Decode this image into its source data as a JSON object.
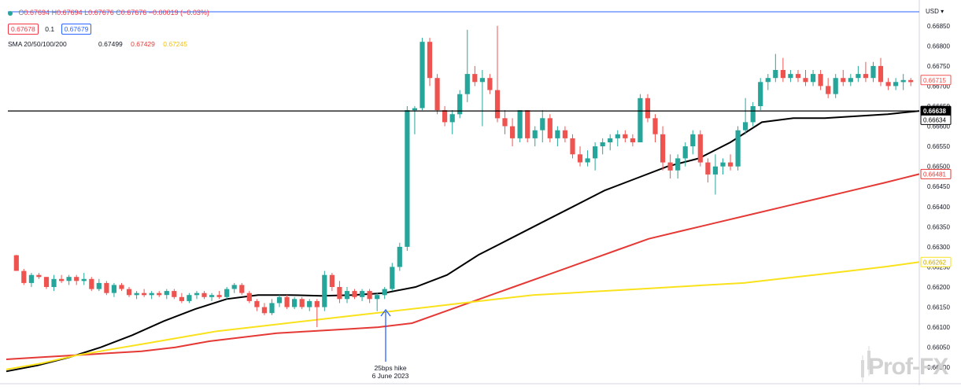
{
  "legend": {
    "open_label": "O",
    "open": "0.67694",
    "high_label": "H",
    "high": "0.67694",
    "low_label": "L",
    "low": "0.67676",
    "close_label": "C",
    "close": "0.67676",
    "change": "−0.00019 (−0.03%)",
    "bid": "0.67678",
    "spread": "0.1",
    "ask": "0.67679",
    "sma_label": "SMA 20/50/100/200",
    "sma_values": [
      "0.67499",
      "0.67429",
      "0.67245"
    ]
  },
  "currency_selector": "USD",
  "annotation": {
    "line1": "25bps hike",
    "line2": "6 June 2023"
  },
  "watermark": "Prof-FX",
  "colors": {
    "up": "#26a69a",
    "down": "#ef5350",
    "sma_black": "#000000",
    "sma_red": "#e53935",
    "sma_yellow": "#f9e21b",
    "arrow": "#2962ff"
  },
  "chart_data": {
    "type": "candlestick",
    "y_axis_ticks": [
      "0.66850",
      "0.66800",
      "0.66750",
      "0.66700",
      "0.66650",
      "0.66600",
      "0.66550",
      "0.66500",
      "0.66450",
      "0.66400",
      "0.66350",
      "0.66300",
      "0.66250",
      "0.66200",
      "0.66150",
      "0.66100",
      "0.66050",
      "0.66000"
    ],
    "ylim": [
      0.65975,
      0.66875
    ],
    "horizontal_line": 0.66638,
    "price_tags": [
      {
        "label": "0.66715",
        "value": 0.66715,
        "color": "#ef5350",
        "style": "outline"
      },
      {
        "label": "0.66638",
        "value": 0.66638,
        "color": "#000000",
        "style": "filled"
      },
      {
        "label": "0.66634",
        "value": 0.66616,
        "color": "#000000",
        "style": "outline"
      },
      {
        "label": "0.66481",
        "value": 0.66481,
        "color": "#e53935",
        "style": "outline"
      },
      {
        "label": "0.66262",
        "value": 0.66262,
        "color": "#f9e21b",
        "style": "outline"
      }
    ],
    "candles": [
      [
        0.66279,
        0.6628,
        0.6624,
        0.6624
      ],
      [
        0.6624,
        0.66245,
        0.66205,
        0.6621
      ],
      [
        0.6621,
        0.66235,
        0.662,
        0.6623
      ],
      [
        0.6623,
        0.66235,
        0.6622,
        0.66225
      ],
      [
        0.66225,
        0.66225,
        0.66195,
        0.662
      ],
      [
        0.662,
        0.6623,
        0.6619,
        0.6622
      ],
      [
        0.6622,
        0.6623,
        0.6621,
        0.66215
      ],
      [
        0.66215,
        0.6623,
        0.66205,
        0.66225
      ],
      [
        0.66225,
        0.6623,
        0.66205,
        0.66215
      ],
      [
        0.66215,
        0.66235,
        0.66205,
        0.6622
      ],
      [
        0.6622,
        0.66225,
        0.6619,
        0.66195
      ],
      [
        0.66195,
        0.6622,
        0.6619,
        0.6621
      ],
      [
        0.6621,
        0.66215,
        0.6618,
        0.66185
      ],
      [
        0.66185,
        0.6621,
        0.66175,
        0.66205
      ],
      [
        0.66205,
        0.6621,
        0.6619,
        0.66195
      ],
      [
        0.66195,
        0.662,
        0.66175,
        0.6618
      ],
      [
        0.6618,
        0.6619,
        0.6617,
        0.66185
      ],
      [
        0.66185,
        0.66195,
        0.66175,
        0.6618
      ],
      [
        0.6618,
        0.6619,
        0.6617,
        0.66185
      ],
      [
        0.66185,
        0.6619,
        0.66175,
        0.6618
      ],
      [
        0.6618,
        0.66195,
        0.6617,
        0.6619
      ],
      [
        0.6619,
        0.66195,
        0.6617,
        0.66175
      ],
      [
        0.66175,
        0.66185,
        0.6616,
        0.66165
      ],
      [
        0.66165,
        0.66185,
        0.6616,
        0.6618
      ],
      [
        0.6618,
        0.6619,
        0.6617,
        0.66185
      ],
      [
        0.66185,
        0.6619,
        0.6617,
        0.66175
      ],
      [
        0.66175,
        0.66185,
        0.66165,
        0.6618
      ],
      [
        0.6618,
        0.6619,
        0.6617,
        0.66175
      ],
      [
        0.66175,
        0.662,
        0.6617,
        0.66195
      ],
      [
        0.66195,
        0.6621,
        0.66185,
        0.66205
      ],
      [
        0.66205,
        0.6621,
        0.6618,
        0.66185
      ],
      [
        0.66185,
        0.6619,
        0.6616,
        0.66165
      ],
      [
        0.66165,
        0.6617,
        0.6614,
        0.6615
      ],
      [
        0.6615,
        0.6616,
        0.6613,
        0.66135
      ],
      [
        0.66135,
        0.6617,
        0.6613,
        0.6616
      ],
      [
        0.6616,
        0.6618,
        0.6615,
        0.66175
      ],
      [
        0.66175,
        0.6618,
        0.66145,
        0.6615
      ],
      [
        0.6615,
        0.66175,
        0.66145,
        0.6617
      ],
      [
        0.6617,
        0.66175,
        0.66145,
        0.6615
      ],
      [
        0.6615,
        0.6617,
        0.6614,
        0.66165
      ],
      [
        0.66165,
        0.6617,
        0.661,
        0.6615
      ],
      [
        0.6615,
        0.6624,
        0.6614,
        0.6623
      ],
      [
        0.6623,
        0.66235,
        0.6619,
        0.662
      ],
      [
        0.662,
        0.66215,
        0.6616,
        0.6617
      ],
      [
        0.6617,
        0.662,
        0.6616,
        0.6619
      ],
      [
        0.6619,
        0.66195,
        0.6617,
        0.66175
      ],
      [
        0.66175,
        0.66195,
        0.66165,
        0.6619
      ],
      [
        0.6619,
        0.66195,
        0.6616,
        0.6617
      ],
      [
        0.6617,
        0.66185,
        0.6614,
        0.6618
      ],
      [
        0.6618,
        0.662,
        0.6617,
        0.66195
      ],
      [
        0.66195,
        0.6626,
        0.6619,
        0.6625
      ],
      [
        0.6625,
        0.6631,
        0.6624,
        0.663
      ],
      [
        0.663,
        0.6665,
        0.6629,
        0.6664
      ],
      [
        0.6664,
        0.6665,
        0.6658,
        0.66645
      ],
      [
        0.66645,
        0.6682,
        0.6664,
        0.6681
      ],
      [
        0.6681,
        0.6682,
        0.667,
        0.6672
      ],
      [
        0.6672,
        0.6673,
        0.6663,
        0.6664
      ],
      [
        0.6664,
        0.6665,
        0.666,
        0.6661
      ],
      [
        0.6661,
        0.6664,
        0.6658,
        0.6663
      ],
      [
        0.6663,
        0.6669,
        0.6662,
        0.6668
      ],
      [
        0.6668,
        0.6684,
        0.6666,
        0.6673
      ],
      [
        0.6673,
        0.6675,
        0.667,
        0.6671
      ],
      [
        0.6671,
        0.6674,
        0.666,
        0.6672
      ],
      [
        0.6672,
        0.6673,
        0.6668,
        0.6669
      ],
      [
        0.6669,
        0.6685,
        0.6661,
        0.6662
      ],
      [
        0.6662,
        0.6664,
        0.6658,
        0.666
      ],
      [
        0.666,
        0.6662,
        0.6655,
        0.6657
      ],
      [
        0.6657,
        0.6664,
        0.6656,
        0.6664
      ],
      [
        0.6664,
        0.6664,
        0.6656,
        0.6657
      ],
      [
        0.6657,
        0.666,
        0.6655,
        0.6659
      ],
      [
        0.6659,
        0.6664,
        0.6656,
        0.6662
      ],
      [
        0.6662,
        0.6663,
        0.6656,
        0.6657
      ],
      [
        0.6657,
        0.666,
        0.6655,
        0.6659
      ],
      [
        0.6659,
        0.666,
        0.6656,
        0.6657
      ],
      [
        0.6657,
        0.6658,
        0.6652,
        0.6653
      ],
      [
        0.6653,
        0.6655,
        0.665,
        0.6651
      ],
      [
        0.6651,
        0.6654,
        0.665,
        0.6652
      ],
      [
        0.6652,
        0.6656,
        0.6649,
        0.6655
      ],
      [
        0.6655,
        0.6657,
        0.6653,
        0.6656
      ],
      [
        0.6656,
        0.6658,
        0.6654,
        0.6657
      ],
      [
        0.6657,
        0.6659,
        0.6655,
        0.6658
      ],
      [
        0.6658,
        0.6659,
        0.6656,
        0.6657
      ],
      [
        0.6657,
        0.6658,
        0.6655,
        0.6656
      ],
      [
        0.6656,
        0.6668,
        0.6656,
        0.6667
      ],
      [
        0.6667,
        0.6668,
        0.6661,
        0.6662
      ],
      [
        0.6662,
        0.6663,
        0.6656,
        0.6658
      ],
      [
        0.6658,
        0.666,
        0.6649,
        0.6651
      ],
      [
        0.6651,
        0.6653,
        0.6647,
        0.6649
      ],
      [
        0.6649,
        0.6653,
        0.6647,
        0.6652
      ],
      [
        0.6652,
        0.6656,
        0.665,
        0.6655
      ],
      [
        0.6655,
        0.6659,
        0.6653,
        0.6658
      ],
      [
        0.6658,
        0.6659,
        0.665,
        0.6651
      ],
      [
        0.6651,
        0.6652,
        0.6646,
        0.6648
      ],
      [
        0.6648,
        0.6653,
        0.6643,
        0.665
      ],
      [
        0.665,
        0.6652,
        0.6648,
        0.6651
      ],
      [
        0.6651,
        0.6653,
        0.6649,
        0.665
      ],
      [
        0.665,
        0.666,
        0.6649,
        0.6659
      ],
      [
        0.6659,
        0.6667,
        0.6658,
        0.6661
      ],
      [
        0.6661,
        0.6666,
        0.666,
        0.6665
      ],
      [
        0.6665,
        0.6672,
        0.6664,
        0.6671
      ],
      [
        0.6671,
        0.6673,
        0.6669,
        0.6672
      ],
      [
        0.6672,
        0.6678,
        0.6671,
        0.6674
      ],
      [
        0.6674,
        0.6677,
        0.6671,
        0.6672
      ],
      [
        0.6672,
        0.6674,
        0.6671,
        0.6673
      ],
      [
        0.6673,
        0.6674,
        0.6671,
        0.6672
      ],
      [
        0.6672,
        0.6674,
        0.667,
        0.6671
      ],
      [
        0.6671,
        0.6674,
        0.667,
        0.6673
      ],
      [
        0.6673,
        0.6674,
        0.6669,
        0.667
      ],
      [
        0.667,
        0.6672,
        0.6667,
        0.6668
      ],
      [
        0.6668,
        0.6673,
        0.6667,
        0.6672
      ],
      [
        0.6672,
        0.6674,
        0.667,
        0.6671
      ],
      [
        0.6671,
        0.6673,
        0.667,
        0.6672
      ],
      [
        0.6672,
        0.6675,
        0.6671,
        0.6673
      ],
      [
        0.6673,
        0.6676,
        0.6671,
        0.6672
      ],
      [
        0.6672,
        0.6676,
        0.6671,
        0.6675
      ],
      [
        0.6675,
        0.6677,
        0.667,
        0.6671
      ],
      [
        0.6671,
        0.6672,
        0.6669,
        0.667
      ],
      [
        0.667,
        0.6672,
        0.6669,
        0.6671
      ],
      [
        0.6671,
        0.6673,
        0.6669,
        0.66715
      ],
      [
        0.66715,
        0.6672,
        0.667,
        0.6671
      ]
    ],
    "sma_series": [
      {
        "color": "#000000",
        "values": [
          0.6599,
          0.66005,
          0.66025,
          0.6605,
          0.6608,
          0.66115,
          0.66145,
          0.6617,
          0.6618,
          0.6618,
          0.66178,
          0.6618,
          0.66185,
          0.662,
          0.6623,
          0.6628,
          0.6632,
          0.6636,
          0.664,
          0.6644,
          0.6647,
          0.665,
          0.6652,
          0.6656,
          0.6661,
          0.6662,
          0.6662,
          0.66625,
          0.6663,
          0.66638
        ]
      },
      {
        "color": "#e53935",
        "values": [
          0.6602,
          0.66025,
          0.6603,
          0.66035,
          0.6604,
          0.6605,
          0.66065,
          0.66075,
          0.66085,
          0.6609,
          0.66095,
          0.661,
          0.6611,
          0.6614,
          0.6617,
          0.662,
          0.6623,
          0.6626,
          0.6629,
          0.6632,
          0.6634,
          0.6636,
          0.6638,
          0.664,
          0.6642,
          0.6644,
          0.6646,
          0.66481
        ]
      },
      {
        "color": "#f9e21b",
        "values": [
          0.65995,
          0.6601,
          0.6603,
          0.66045,
          0.6606,
          0.66075,
          0.6609,
          0.661,
          0.6611,
          0.6612,
          0.6613,
          0.6614,
          0.6615,
          0.6616,
          0.6617,
          0.6618,
          0.66185,
          0.6619,
          0.66195,
          0.662,
          0.66205,
          0.6621,
          0.6622,
          0.6623,
          0.6624,
          0.6625,
          0.66262
        ]
      }
    ]
  }
}
